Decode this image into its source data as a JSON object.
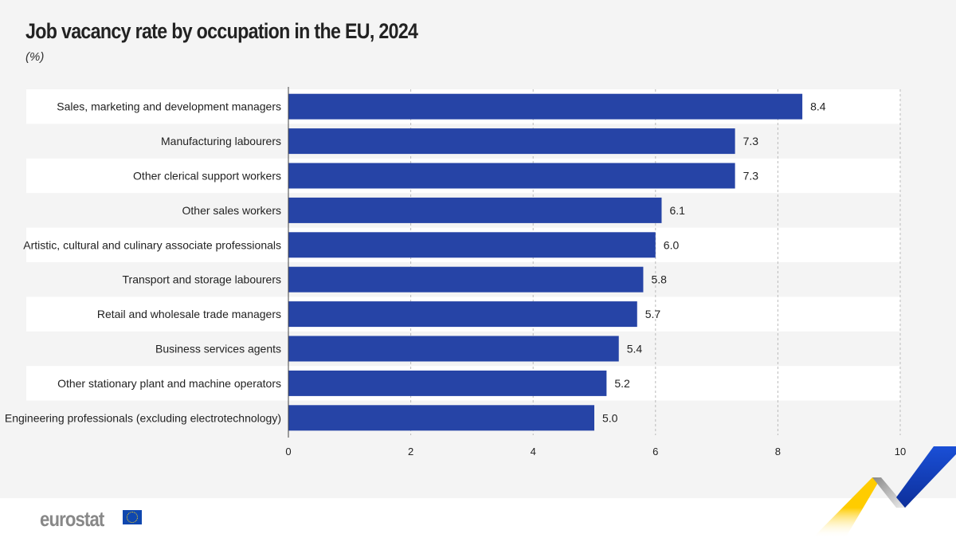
{
  "chart_data": {
    "type": "bar",
    "orientation": "horizontal",
    "title": "Job vacancy rate by occupation in the EU, 2024",
    "subtitle": "(%)",
    "categories": [
      "Sales, marketing and development managers",
      "Manufacturing labourers",
      "Other clerical support workers",
      "Other sales workers",
      "Artistic, cultural and culinary associate professionals",
      "Transport and storage labourers",
      "Retail and wholesale trade managers",
      "Business services agents",
      "Other stationary plant and machine operators",
      "Engineering professionals (excluding electrotechnology)"
    ],
    "values": [
      8.4,
      7.3,
      7.3,
      6.1,
      6.0,
      5.8,
      5.7,
      5.4,
      5.2,
      5.0
    ],
    "value_labels": [
      "8.4",
      "7.3",
      "7.3",
      "6.1",
      "6.0",
      "5.8",
      "5.7",
      "5.4",
      "5.2",
      "5.0"
    ],
    "xlim": [
      0,
      10
    ],
    "xticks": [
      "0",
      "2",
      "4",
      "6",
      "8",
      "10"
    ],
    "grid": true,
    "bar_color": "#2644a6"
  },
  "footer": {
    "logo": "eurostat"
  }
}
